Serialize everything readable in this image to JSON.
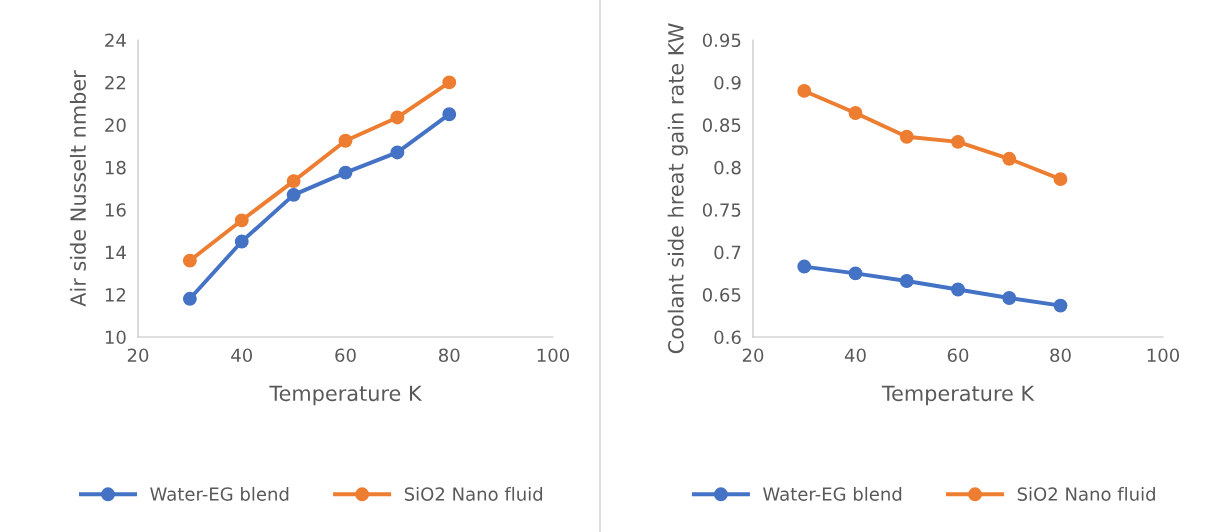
{
  "chart_data": [
    {
      "type": "line",
      "xlabel": "Temperature K",
      "ylabel": "Air side Nusselt nmber",
      "x": [
        30,
        40,
        50,
        60,
        70,
        80
      ],
      "xlim": [
        20,
        100
      ],
      "xticks": [
        20,
        40,
        60,
        80,
        100
      ],
      "ylim": [
        10,
        24
      ],
      "yticks": [
        10,
        12,
        14,
        16,
        18,
        20,
        22,
        24
      ],
      "grid": false,
      "legend": "bottom",
      "marker": "circle",
      "line_style": "solid",
      "series": [
        {
          "name": "Water-EG blend",
          "color": "#4472c4",
          "values": [
            11.8,
            14.5,
            16.7,
            17.75,
            18.7,
            20.5
          ]
        },
        {
          "name": "SiO2 Nano fluid",
          "color": "#ed7d31",
          "values": [
            13.6,
            15.5,
            17.35,
            19.25,
            20.35,
            22.0
          ]
        }
      ]
    },
    {
      "type": "line",
      "xlabel": "Temperature K",
      "ylabel": "Coolant side hreat gain rate KW",
      "x": [
        30,
        40,
        50,
        60,
        70,
        80
      ],
      "xlim": [
        20,
        100
      ],
      "xticks": [
        20,
        40,
        60,
        80,
        100
      ],
      "ylim": [
        0.6,
        0.95
      ],
      "yticks": [
        {
          "value": 0.6,
          "label": "0.6"
        },
        {
          "value": 0.65,
          "label": "0.65"
        },
        {
          "value": 0.7,
          "label": "0.7"
        },
        {
          "value": 0.75,
          "label": "0.75"
        },
        {
          "value": 0.8,
          "label": "0.8"
        },
        {
          "value": 0.85,
          "label": "0.85"
        },
        {
          "value": 0.9,
          "label": "0.9"
        },
        {
          "value": 0.95,
          "label": "0.95"
        }
      ],
      "grid": false,
      "legend": "bottom",
      "marker": "circle",
      "line_style": "solid",
      "series": [
        {
          "name": "Water-EG blend",
          "color": "#4472c4",
          "values": [
            0.683,
            0.675,
            0.666,
            0.656,
            0.646,
            0.637
          ]
        },
        {
          "name": "SiO2 Nano fluid",
          "color": "#ed7d31",
          "values": [
            0.89,
            0.864,
            0.836,
            0.83,
            0.81,
            0.786
          ]
        }
      ]
    }
  ]
}
